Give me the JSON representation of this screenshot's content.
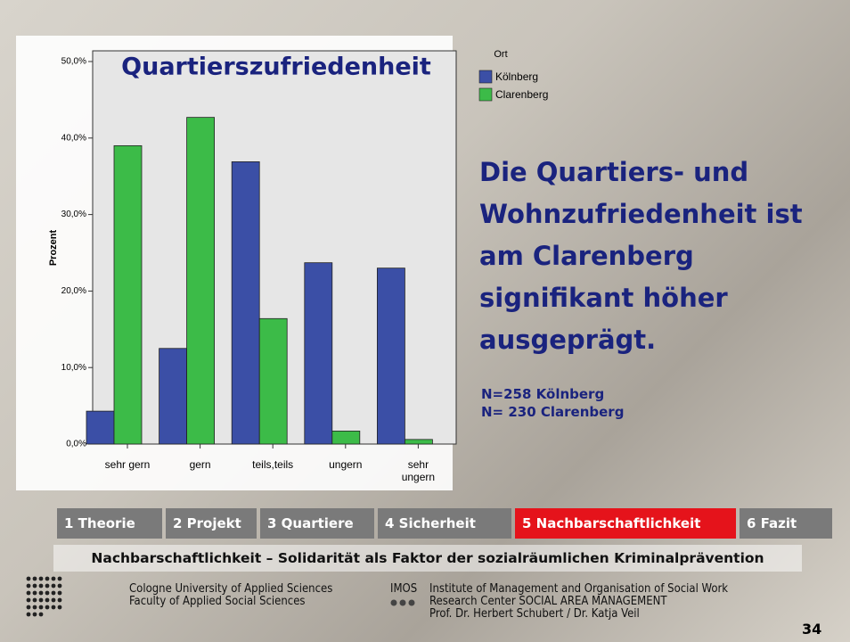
{
  "chart_data": {
    "type": "bar",
    "title": "Quartierszufriedenheit",
    "y_label": "Prozent",
    "legend_title": "Ort",
    "categories": [
      "sehr gern",
      "gern",
      "teils,teils",
      "ungern",
      "sehr ungern"
    ],
    "series": [
      {
        "name": "Kölnberg",
        "color": "#3b4fa6",
        "values": [
          4.3,
          12.5,
          36.9,
          23.7,
          23.0
        ]
      },
      {
        "name": "Clarenberg",
        "color": "#3cbb48",
        "values": [
          39.0,
          42.7,
          16.4,
          1.7,
          0.6
        ]
      }
    ],
    "ylim": [
      0,
      51.4
    ],
    "yticks": [
      {
        "value": 0,
        "label": "0,0%"
      },
      {
        "value": 10,
        "label": "10,0%"
      },
      {
        "value": 20,
        "label": "20,0%"
      },
      {
        "value": 30,
        "label": "30,0%"
      },
      {
        "value": 40,
        "label": "40,0%"
      },
      {
        "value": 50,
        "label": "50,0%"
      }
    ],
    "grid": false
  },
  "slide": {
    "headline": [
      "Die Quartiers- und",
      "Wohnzufriedenheit ist",
      "am Clarenberg",
      "signifikant höher",
      "ausgeprägt."
    ],
    "sample": [
      "N=258 Kölnberg",
      "N= 230 Clarenberg"
    ],
    "tabs": [
      "1 Theorie",
      "2 Projekt",
      "3 Quartiere",
      "4  Sicherheit",
      "5  Nachbarschaftlichkeit",
      "6 Fazit"
    ],
    "active_tab": 4,
    "subtitle": "Nachbarschaftlichkeit – Solidarität als Faktor der sozialräumlichen Kriminalprävention",
    "university": [
      "Cologne University of Applied Sciences",
      "Faculty of Applied Social Sciences"
    ],
    "institute_short": "IMOS",
    "institute": [
      "Institute of Management and Organisation of Social Work",
      "Research Center   SOCIAL AREA  MANAGEMENT",
      "Prof. Dr. Herbert Schubert / Dr. Katja Veil"
    ],
    "page": "34"
  }
}
